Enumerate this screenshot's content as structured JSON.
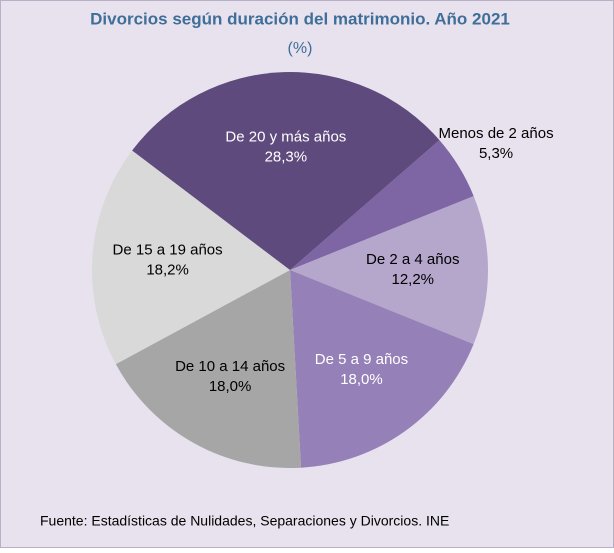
{
  "chart_data": {
    "type": "pie",
    "title": "Divorcios según duración del matrimonio. Año 2021",
    "subtitle": "(%)",
    "source": "Fuente: Estadísticas de Nulidades, Separaciones y Divorcios. INE",
    "categories": [
      "Menos de 2 años",
      "De 2 a 4 años",
      "De 5 a 9 años",
      "De 10 a 14 años",
      "De 15 a 19 años",
      "De 20 y  más años"
    ],
    "values": [
      5.3,
      12.2,
      18.0,
      18.0,
      18.2,
      28.3
    ],
    "value_labels": [
      "5,3%",
      "12,2%",
      "18,0%",
      "18,0%",
      "18,2%",
      "28,3%"
    ],
    "colors": [
      "#7e66a4",
      "#b5a6cc",
      "#9580b8",
      "#a6a6a6",
      "#d9d9d9",
      "#5e4a7c"
    ]
  }
}
